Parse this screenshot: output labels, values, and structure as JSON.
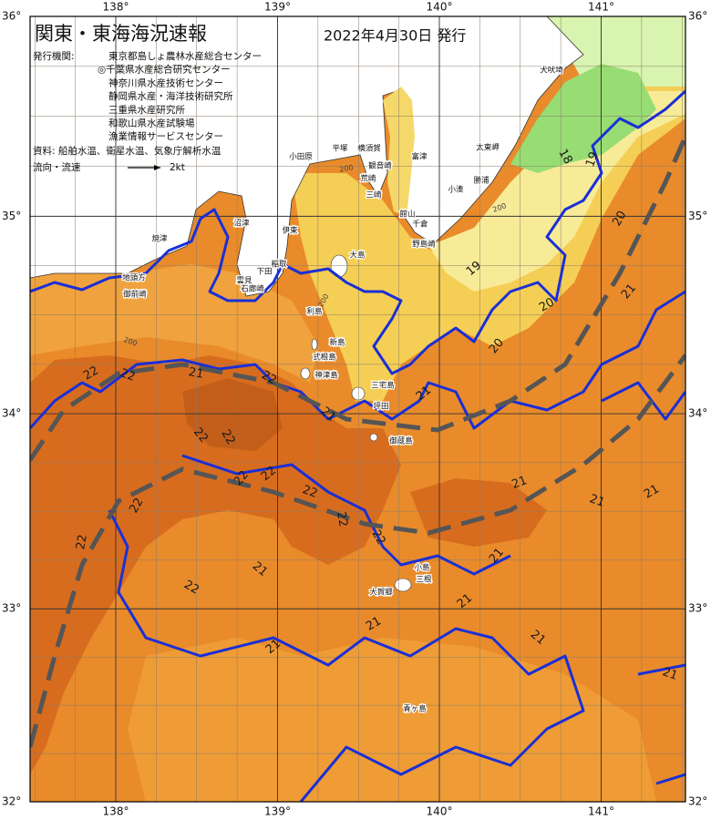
{
  "header": {
    "title": "関東・東海海況速報",
    "date": "2022年4月30日 発行"
  },
  "info": {
    "issuers_label": "発行機関:",
    "issuers": [
      "東京都島しょ農林水産総合センター",
      "◎千葉県水産総合研究センター",
      "神奈川県水産技術センター",
      "静岡県水産・海洋技術研究所",
      "三重県水産研究所",
      "和歌山県水産試験場",
      "漁業情報サービスセンター"
    ],
    "sources": "資料: 船舶水温、衛星水温、気象庁解析水温",
    "flow_label": "流向・流速",
    "flow_scale": "2kt"
  },
  "map": {
    "lon_ticks": [
      {
        "value": 138,
        "label": "138°"
      },
      {
        "value": 139,
        "label": "139°"
      },
      {
        "value": 140,
        "label": "140°"
      },
      {
        "value": 141,
        "label": "141°"
      }
    ],
    "lat_ticks": [
      {
        "value": 36,
        "label": "36°"
      },
      {
        "value": 35,
        "label": "35°"
      },
      {
        "value": 34,
        "label": "34°"
      },
      {
        "value": 33,
        "label": "33°"
      },
      {
        "value": 32,
        "label": "32°"
      }
    ],
    "place_names": [
      "小田原",
      "平塚",
      "横須賀",
      "観音崎",
      "荒崎",
      "三崎",
      "富津",
      "館山",
      "千倉",
      "野島崎",
      "小湊",
      "勝浦",
      "太東岬",
      "犬吠埼",
      "伊東",
      "稲取",
      "下田",
      "雲見",
      "石廊崎",
      "沼津",
      "焼津",
      "地頭方",
      "御前崎",
      "大島",
      "利島",
      "新島",
      "式根島",
      "神津島",
      "三宅島",
      "坪田",
      "御蔵島",
      "小島",
      "三根",
      "大賀郷",
      "青ヶ島"
    ],
    "isotherm_labels": [
      22,
      22,
      21,
      22,
      21,
      21,
      22,
      22,
      22,
      22,
      22,
      22,
      22,
      22,
      22,
      21,
      22,
      21,
      21,
      21,
      19,
      20,
      20,
      21,
      21,
      21,
      18,
      19,
      20,
      21,
      21,
      21,
      21
    ],
    "depth_labels": [
      200,
      200,
      200,
      200
    ]
  }
}
